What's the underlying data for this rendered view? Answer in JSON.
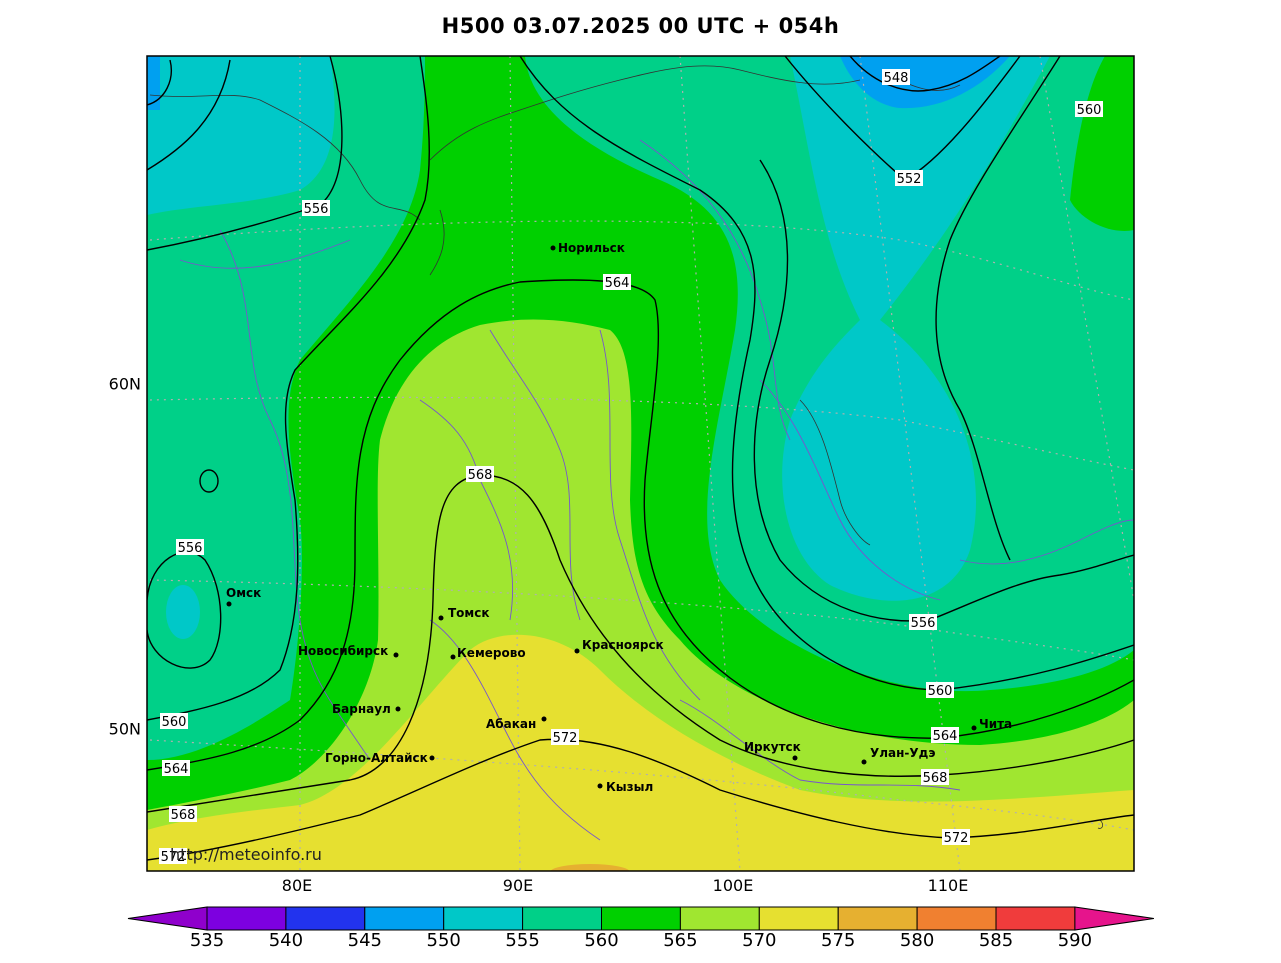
{
  "title": "H500  03.07.2025 00 UTC + 054h",
  "lon_labels": [
    "80E",
    "90E",
    "100E",
    "110E"
  ],
  "lat_labels": [
    "60N",
    "50N"
  ],
  "colorbar": {
    "values": [
      "535",
      "540",
      "545",
      "550",
      "555",
      "560",
      "565",
      "570",
      "575",
      "580",
      "585",
      "590"
    ],
    "colors": [
      "#8f00cc",
      "#7d00e0",
      "#2233ee",
      "#00a0f0",
      "#00c8c8",
      "#00d088",
      "#00d000",
      "#a0e630",
      "#e6e030",
      "#e6b030",
      "#f08030",
      "#f03c3c",
      "#e6148c"
    ]
  },
  "cities": [
    "Норильск",
    "Омск",
    "Томск",
    "Новосибирск",
    "Кемерово",
    "Красноярск",
    "Барнаул",
    "Абакан",
    "Горно-Алтайск",
    "Кызыл",
    "Иркутск",
    "Улан-Удэ",
    "Чита"
  ],
  "contour_labels": [
    "548",
    "552",
    "556",
    "560",
    "564",
    "568",
    "572"
  ],
  "watermark": "http://meteoinfo.ru"
}
